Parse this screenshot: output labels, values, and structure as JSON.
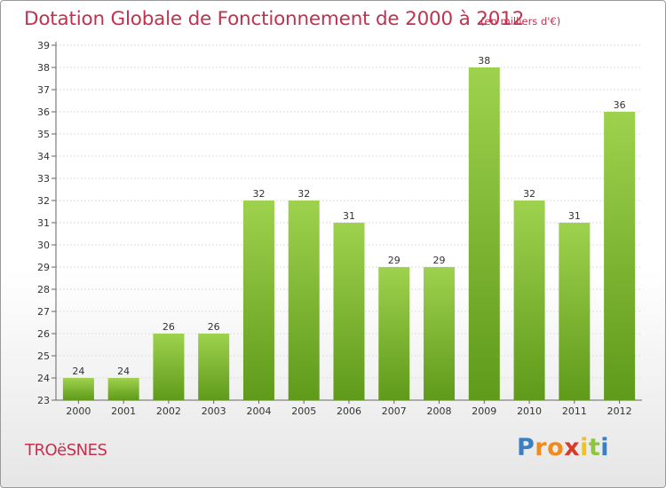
{
  "header": {
    "title": "Dotation Globale de Fonctionnement de 2000 à 2012",
    "unit": "(en milliers d'€)"
  },
  "footer": {
    "commune": "TROëSNES",
    "logo_letters": [
      "P",
      "r",
      "o",
      "x",
      "i",
      "t",
      "i"
    ]
  },
  "colors": {
    "title": "#c1324f",
    "bar_light": "#9ed24e",
    "bar_dark": "#5f9a1a",
    "logo": [
      "#3a7fc4",
      "#f08a1c",
      "#f08a1c",
      "#d73a2a",
      "#f2c21a",
      "#8cc63f",
      "#3a7fc4"
    ]
  },
  "chart_data": {
    "type": "bar",
    "categories": [
      "2000",
      "2001",
      "2002",
      "2003",
      "2004",
      "2005",
      "2006",
      "2007",
      "2008",
      "2009",
      "2010",
      "2011",
      "2012"
    ],
    "values": [
      24,
      24,
      26,
      26,
      32,
      32,
      31,
      29,
      29,
      38,
      32,
      31,
      36
    ],
    "value_labels": [
      "24",
      "24",
      "26",
      "26",
      "32",
      "32",
      "31",
      "29",
      "29",
      "38",
      "32",
      "31",
      "36"
    ],
    "yticks": [
      "23",
      "24",
      "25",
      "26",
      "27",
      "28",
      "29",
      "30",
      "31",
      "32",
      "33",
      "34",
      "35",
      "36",
      "37",
      "38",
      "39"
    ],
    "ylim": [
      23,
      39
    ],
    "grid": true,
    "legend": "none"
  }
}
